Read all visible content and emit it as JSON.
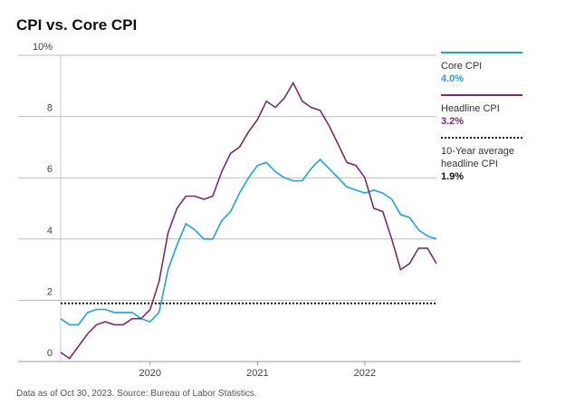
{
  "chart_data": {
    "type": "line",
    "title": "CPI vs. Core CPI",
    "footnote": "Data as of Oct 30, 2023. Source: Bureau of Labor Statistics.",
    "x": [
      2019.167,
      2019.25,
      2019.333,
      2019.417,
      2019.5,
      2019.583,
      2019.667,
      2019.75,
      2019.833,
      2019.917,
      2020.0,
      2020.083,
      2020.167,
      2020.25,
      2020.333,
      2020.417,
      2020.5,
      2020.583,
      2020.667,
      2020.75,
      2020.833,
      2020.917,
      2021.0,
      2021.083,
      2021.167,
      2021.25,
      2021.333,
      2021.417,
      2021.5,
      2021.583,
      2021.667,
      2021.75,
      2021.833,
      2021.917,
      2022.0,
      2022.083,
      2022.167,
      2022.25,
      2022.333,
      2022.417,
      2022.5,
      2022.583,
      2022.667
    ],
    "series": [
      {
        "name": "Core CPI",
        "color": "#1aa6d9",
        "legend_value": "4.0%",
        "values": [
          1.4,
          1.2,
          1.2,
          1.6,
          1.7,
          1.7,
          1.6,
          1.6,
          1.6,
          1.4,
          1.3,
          1.6,
          3.0,
          3.8,
          4.5,
          4.3,
          4.0,
          4.0,
          4.6,
          4.9,
          5.5,
          6.0,
          6.4,
          6.5,
          6.2,
          6.0,
          5.9,
          5.9,
          6.3,
          6.6,
          6.3,
          6.0,
          5.7,
          5.6,
          5.5,
          5.6,
          5.5,
          5.3,
          4.8,
          4.7,
          4.3,
          4.1,
          4.0
        ]
      },
      {
        "name": "Headline CPI",
        "color": "#7a2a6e",
        "legend_value": "3.2%",
        "values": [
          0.3,
          0.1,
          0.5,
          0.9,
          1.2,
          1.3,
          1.2,
          1.2,
          1.4,
          1.4,
          1.7,
          2.6,
          4.2,
          5.0,
          5.4,
          5.4,
          5.3,
          5.4,
          6.2,
          6.8,
          7.0,
          7.5,
          7.9,
          8.5,
          8.3,
          8.6,
          9.1,
          8.5,
          8.3,
          8.2,
          7.7,
          7.1,
          6.5,
          6.4,
          6.0,
          5.0,
          4.9,
          4.0,
          3.0,
          3.2,
          3.7,
          3.7,
          3.2
        ]
      }
    ],
    "reference_line": {
      "name": "10-Year average headline CPI",
      "value": 1.9,
      "value_label": "1.9%",
      "color": "#111111"
    },
    "xlim": [
      2019.167,
      2022.667
    ],
    "xticks": [
      2020,
      2021,
      2022
    ],
    "ylim": [
      0,
      10
    ],
    "yticks": [
      0,
      2,
      4,
      6,
      8,
      {
        "value": 10,
        "label": "10%"
      }
    ],
    "grid": true
  }
}
